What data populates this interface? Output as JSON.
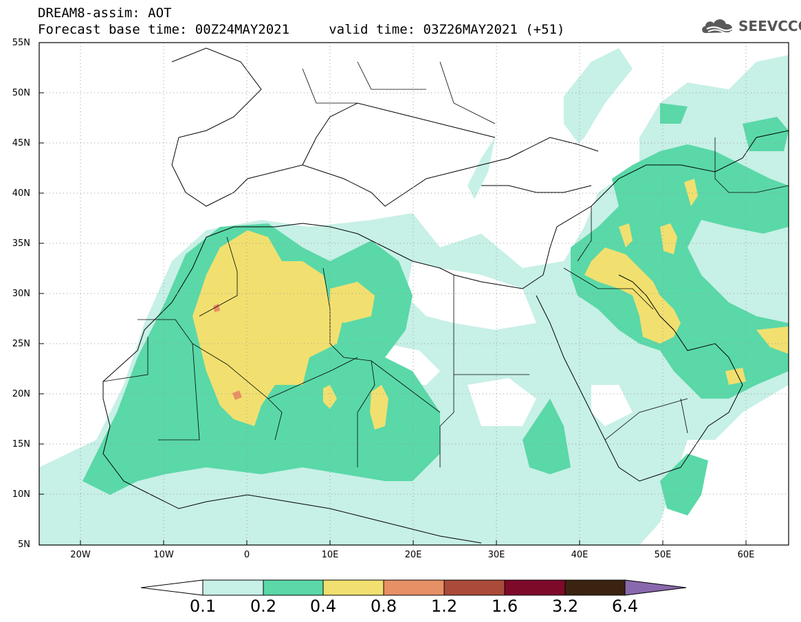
{
  "header": {
    "line1": "DREAM8-assim: AOT",
    "line2": "Forecast base time: 00Z24MAY2021     valid time: 03Z26MAY2021 (+51)"
  },
  "logo": {
    "text": "SEEVCCC",
    "icon": "cloud-logo-icon"
  },
  "map": {
    "lat_range": [
      5,
      55
    ],
    "lon_range": [
      -25,
      65
    ],
    "lat_ticks": [
      "55N",
      "50N",
      "45N",
      "40N",
      "35N",
      "30N",
      "25N",
      "20N",
      "15N",
      "10N",
      "5N"
    ],
    "lon_ticks": [
      "20W",
      "10W",
      "0",
      "10E",
      "20E",
      "30E",
      "40E",
      "50E",
      "60E"
    ],
    "gridlines": "dotted"
  },
  "legend": {
    "labels": [
      "0.1",
      "0.2",
      "0.4",
      "0.8",
      "1.2",
      "1.6",
      "3.2",
      "6.4"
    ],
    "colors": [
      "#ffffff",
      "#c7f0e6",
      "#5ad8a8",
      "#f1e070",
      "#e79065",
      "#aa4a3a",
      "#7e0a2a",
      "#3b2311",
      "#8a68ad"
    ]
  }
}
